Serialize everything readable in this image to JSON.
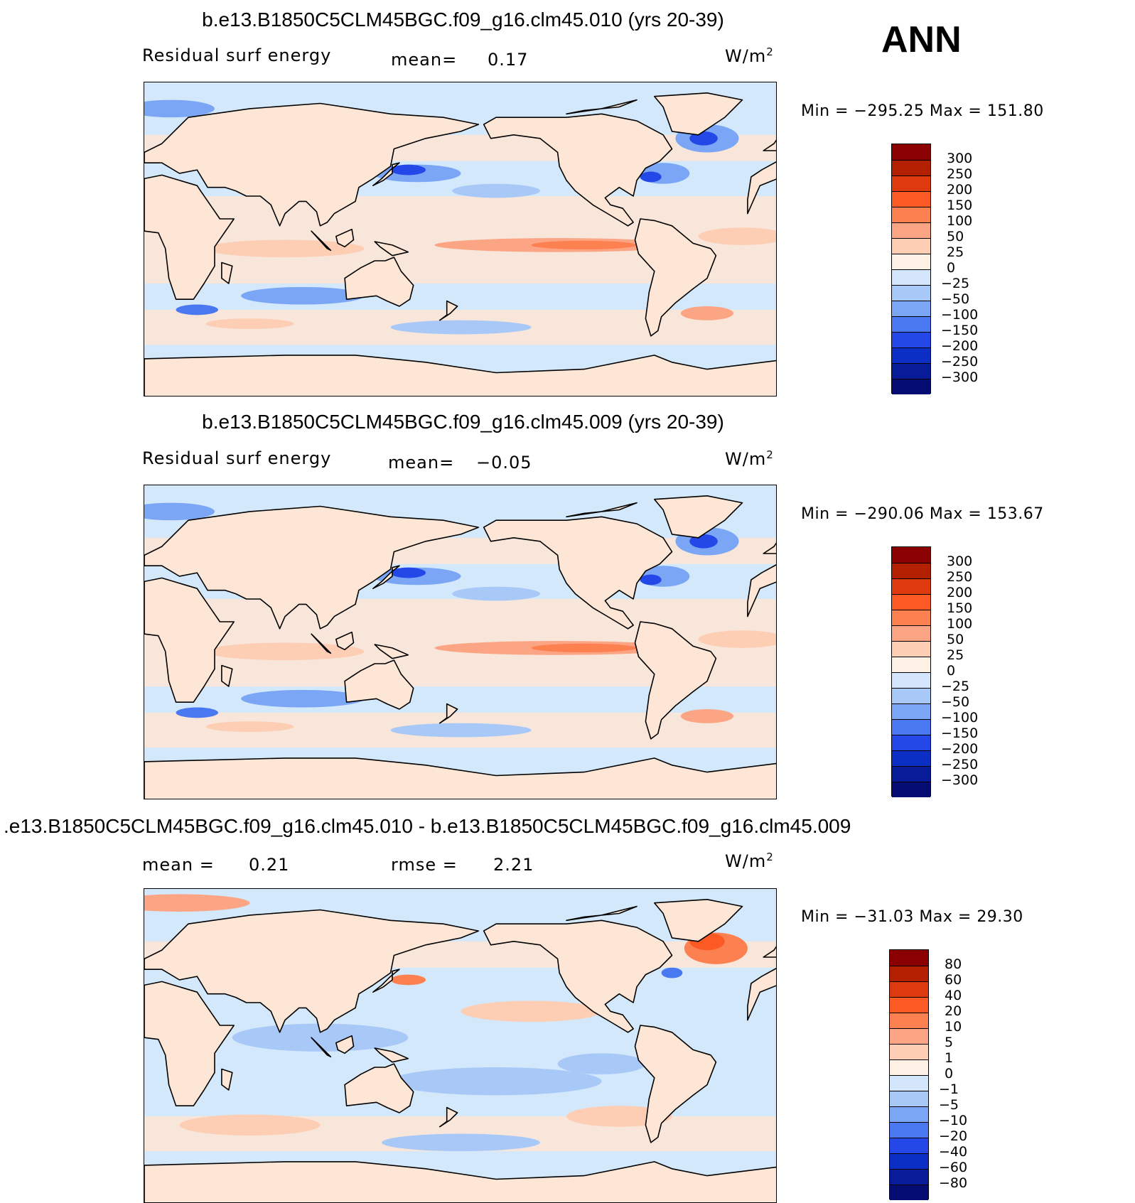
{
  "season": "ANN",
  "panels": [
    {
      "title": "b.e13.B1850C5CLM45BGC.f09_g16.clm45.010 (yrs 20-39)",
      "left_label": "Residual surf energy",
      "mean_label": "mean=",
      "mean_value": "0.17",
      "units": "W/m",
      "units_exp": "2",
      "min_label": "Min =",
      "min_value": "−295.25",
      "max_label": "Max =",
      "max_value": "151.80",
      "levels": [
        "300",
        "250",
        "200",
        "150",
        "100",
        "50",
        "25",
        "0",
        "−25",
        "−50",
        "−100",
        "−150",
        "−200",
        "−250",
        "−300"
      ]
    },
    {
      "title": "b.e13.B1850C5CLM45BGC.f09_g16.clm45.009 (yrs 20-39)",
      "left_label": "Residual surf energy",
      "mean_label": "mean=",
      "mean_value": "−0.05",
      "units": "W/m",
      "units_exp": "2",
      "min_label": "Min =",
      "min_value": "−290.06",
      "max_label": "Max =",
      "max_value": "153.67",
      "levels": [
        "300",
        "250",
        "200",
        "150",
        "100",
        "50",
        "25",
        "0",
        "−25",
        "−50",
        "−100",
        "−150",
        "−200",
        "−250",
        "−300"
      ]
    },
    {
      "title": ".e13.B1850C5CLM45BGC.f09_g16.clm45.010 - b.e13.B1850C5CLM45BGC.f09_g16.clm45.009",
      "left_label": "mean =",
      "mean_label": "",
      "mean_value": "0.21",
      "rmse_label": "rmse =",
      "rmse_value": "2.21",
      "units": "W/m",
      "units_exp": "2",
      "min_label": "Min =",
      "min_value": "−31.03",
      "max_label": "Max =",
      "max_value": "29.30",
      "levels": [
        "80",
        "60",
        "40",
        "20",
        "10",
        "5",
        "1",
        "0",
        "−1",
        "−5",
        "−10",
        "−20",
        "−40",
        "−60",
        "−80"
      ]
    }
  ],
  "colors": {
    "ocean_pos": "#fde6d6",
    "ocean_neg": "#d4e8fb",
    "land": "#fde6d6",
    "scale": [
      "#8b0000",
      "#b22000",
      "#dd3a10",
      "#fb5a24",
      "#fc8050",
      "#fca585",
      "#fdcdb4",
      "#fdf0e4",
      "#d4e6fb",
      "#a8c8f8",
      "#7aa6f5",
      "#4a78f0",
      "#2448e8",
      "#0b2ec4",
      "#081b98",
      "#050c72"
    ]
  },
  "chart_data": [
    {
      "type": "heatmap",
      "title": "b.e13.B1850C5CLM45BGC.f09_g16.clm45.010 (yrs 20-39)",
      "variable": "Residual surf energy",
      "units": "W/m2",
      "mean": 0.17,
      "min": -295.25,
      "max": 151.8,
      "levels": [
        -300,
        -250,
        -200,
        -150,
        -100,
        -50,
        -25,
        0,
        25,
        50,
        100,
        150,
        200,
        250,
        300
      ]
    },
    {
      "type": "heatmap",
      "title": "b.e13.B1850C5CLM45BGC.f09_g16.clm45.009 (yrs 20-39)",
      "variable": "Residual surf energy",
      "units": "W/m2",
      "mean": -0.05,
      "min": -290.06,
      "max": 153.67,
      "levels": [
        -300,
        -250,
        -200,
        -150,
        -100,
        -50,
        -25,
        0,
        25,
        50,
        100,
        150,
        200,
        250,
        300
      ]
    },
    {
      "type": "heatmap",
      "title": ".e13.B1850C5CLM45BGC.f09_g16.clm45.010 - b.e13.B1850C5CLM45BGC.f09_g16.clm45.009",
      "units": "W/m2",
      "mean": 0.21,
      "rmse": 2.21,
      "min": -31.03,
      "max": 29.3,
      "levels": [
        -80,
        -60,
        -40,
        -20,
        -10,
        -5,
        -1,
        0,
        1,
        5,
        10,
        20,
        40,
        60,
        80
      ]
    }
  ]
}
